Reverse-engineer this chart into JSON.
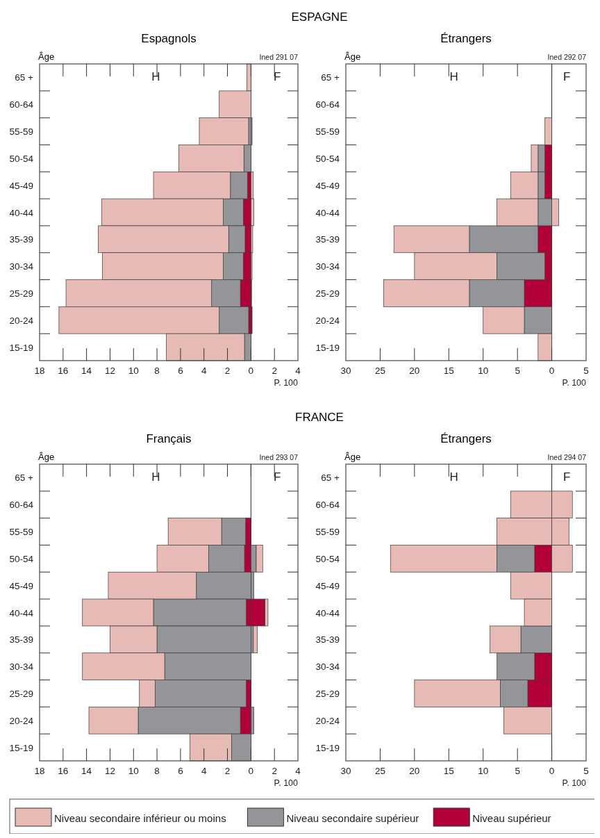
{
  "chart_data": [
    {
      "type": "bar",
      "orientation": "horizontal",
      "stacked": true,
      "title": "Espagnols",
      "xlabel": "P. 100",
      "ylabel": "Âge",
      "annotations": [
        "H",
        "F",
        "Ined 291 07",
        "ESPAGNE"
      ],
      "categories": [
        "65 +",
        "60-64",
        "55-59",
        "50-54",
        "45-49",
        "40-44",
        "35-39",
        "30-34",
        "25-29",
        "20-24",
        "15-19"
      ],
      "xlim": [
        -18,
        4
      ],
      "xticks": [
        {
          "value": -18,
          "label": "18"
        },
        {
          "value": -16,
          "label": "16"
        },
        {
          "value": -14,
          "label": "14"
        },
        {
          "value": -12,
          "label": "12"
        },
        {
          "value": -10,
          "label": "10"
        },
        {
          "value": -8,
          "label": "8"
        },
        {
          "value": -6,
          "label": "6"
        },
        {
          "value": -4,
          "label": "4"
        },
        {
          "value": -2,
          "label": "2"
        },
        0,
        2,
        4
      ],
      "legend": "bottom",
      "grid": "x",
      "series": [
        {
          "name": "Niveau supérieur",
          "color": "#b20038",
          "values": [
            0,
            0,
            0,
            0,
            -0.3,
            -0.65,
            -0.5,
            -0.65,
            -0.9,
            -0.2,
            0
          ]
        },
        {
          "name": "Niveau secondaire supérieur",
          "color": "#939598",
          "values": [
            0,
            0,
            -0.2,
            -0.6,
            -1.45,
            -1.7,
            -1.4,
            -1.7,
            -2.45,
            -2.5,
            -0.55
          ]
        },
        {
          "name": "Niveau secondaire inférieur ou moins",
          "color": "#e8bab5",
          "values": [
            -0.35,
            -2.7,
            -4.2,
            -5.55,
            -6.55,
            -10.35,
            -11.1,
            -10.3,
            -12.4,
            -13.65,
            -6.65
          ]
        },
        {
          "color": "#b20038",
          "values": [
            0,
            0,
            0,
            0,
            0,
            0,
            0,
            0,
            0.05,
            0.1,
            0
          ]
        },
        {
          "color": "#939598",
          "values": [
            0,
            0,
            0.1,
            0,
            0,
            0,
            0,
            0,
            0,
            0,
            0
          ]
        },
        {
          "color": "#e8bab5",
          "values": [
            0,
            0,
            0,
            0,
            0.2,
            0.25,
            0.15,
            0.1,
            0,
            0,
            0
          ]
        }
      ]
    },
    {
      "type": "bar",
      "orientation": "horizontal",
      "stacked": true,
      "title": "Étrangers",
      "xlabel": "P. 100",
      "ylabel": "Âge",
      "annotations": [
        "H",
        "F",
        "Ined 292 07"
      ],
      "categories": [
        "65 +",
        "60-64",
        "55-59",
        "50-54",
        "45-49",
        "40-44",
        "35-39",
        "30-34",
        "25-29",
        "20-24",
        "15-19"
      ],
      "xlim": [
        -30,
        5
      ],
      "xticks": [
        {
          "value": -30,
          "label": "30"
        },
        {
          "value": -25,
          "label": "25"
        },
        {
          "value": -20,
          "label": "20"
        },
        {
          "value": -15,
          "label": "15"
        },
        {
          "value": -10,
          "label": "10"
        },
        {
          "value": -5,
          "label": "5"
        },
        0,
        5
      ],
      "grid": "x",
      "series": [
        {
          "color": "#b20038",
          "values": [
            0,
            0,
            0,
            -1,
            -1,
            0,
            -2,
            -1,
            -4,
            0,
            0
          ]
        },
        {
          "color": "#939598",
          "values": [
            0,
            0,
            0,
            -1,
            -1,
            -2,
            -10,
            -7,
            -8,
            -4,
            0
          ]
        },
        {
          "color": "#e8bab5",
          "values": [
            0,
            0,
            -1,
            -1,
            -4,
            -6,
            -11,
            -12,
            -12.5,
            -6,
            -2
          ]
        },
        {
          "color": "#e8bab5",
          "values": [
            0,
            0,
            0,
            0,
            0,
            1,
            0,
            0,
            0,
            0,
            0
          ]
        }
      ]
    },
    {
      "type": "bar",
      "orientation": "horizontal",
      "stacked": true,
      "title": "Français",
      "xlabel": "P. 100",
      "ylabel": "Âge",
      "annotations": [
        "H",
        "F",
        "Ined 293 07",
        "FRANCE"
      ],
      "categories": [
        "65 +",
        "60-64",
        "55-59",
        "50-54",
        "45-49",
        "40-44",
        "35-39",
        "30-34",
        "25-29",
        "20-24",
        "15-19"
      ],
      "xlim": [
        -18,
        4
      ],
      "xticks": [
        {
          "value": -18,
          "label": "18"
        },
        {
          "value": -16,
          "label": "16"
        },
        {
          "value": -14,
          "label": "14"
        },
        {
          "value": -12,
          "label": "12"
        },
        {
          "value": -10,
          "label": "10"
        },
        {
          "value": -8,
          "label": "8"
        },
        {
          "value": -6,
          "label": "6"
        },
        {
          "value": -4,
          "label": "4"
        },
        {
          "value": -2,
          "label": "2"
        },
        0,
        2,
        4
      ],
      "grid": "x",
      "series": [
        {
          "color": "#b20038",
          "values": [
            0,
            0,
            -0.45,
            -0.55,
            0,
            -0.4,
            0,
            0,
            -0.4,
            -0.9,
            0
          ]
        },
        {
          "color": "#939598",
          "values": [
            0,
            0,
            -2.05,
            -3.05,
            -4.65,
            -7.9,
            -8,
            -7.35,
            -7.75,
            -8.7,
            -1.65
          ]
        },
        {
          "color": "#e8bab5",
          "values": [
            0,
            0,
            -4.55,
            -4.4,
            -7.5,
            -6.05,
            -4,
            -7,
            -1.35,
            -4.2,
            -3.55
          ]
        },
        {
          "color": "#b20038",
          "values": [
            0,
            0,
            0,
            0,
            0,
            1.2,
            0,
            0,
            0,
            0,
            0
          ]
        },
        {
          "color": "#939598",
          "values": [
            0,
            0,
            0,
            0.45,
            0.25,
            0,
            0.2,
            0,
            0,
            0.25,
            0
          ]
        },
        {
          "color": "#e8bab5",
          "values": [
            0,
            0,
            0,
            0.55,
            0,
            0.25,
            0.35,
            0,
            0,
            0,
            0
          ]
        }
      ]
    },
    {
      "type": "bar",
      "orientation": "horizontal",
      "stacked": true,
      "title": "Étrangers",
      "xlabel": "P. 100",
      "ylabel": "Âge",
      "annotations": [
        "H",
        "F",
        "Ined 294 07"
      ],
      "categories": [
        "65 +",
        "60-64",
        "55-59",
        "50-54",
        "45-49",
        "40-44",
        "35-39",
        "30-34",
        "25-29",
        "20-24",
        "15-19"
      ],
      "xlim": [
        -30,
        5
      ],
      "xticks": [
        {
          "value": -30,
          "label": "30"
        },
        {
          "value": -25,
          "label": "25"
        },
        {
          "value": -20,
          "label": "20"
        },
        {
          "value": -15,
          "label": "15"
        },
        {
          "value": -10,
          "label": "10"
        },
        {
          "value": -5,
          "label": "5"
        },
        0,
        5
      ],
      "grid": "x",
      "series": [
        {
          "color": "#b20038",
          "values": [
            0,
            0,
            0,
            -2.5,
            0,
            0,
            0,
            -2.5,
            -3.5,
            0,
            0
          ]
        },
        {
          "color": "#939598",
          "values": [
            0,
            0,
            0,
            -5.5,
            0,
            0,
            -4.5,
            -5.5,
            -4,
            0,
            0
          ]
        },
        {
          "color": "#e8bab5",
          "values": [
            0,
            -6,
            -8,
            -15.5,
            -6,
            -4,
            -4.5,
            0,
            -12.5,
            -7,
            0
          ]
        },
        {
          "color": "#e8bab5",
          "values": [
            0,
            3,
            2.5,
            3,
            0,
            0,
            0,
            0,
            0,
            0,
            0
          ]
        }
      ]
    }
  ]
}
